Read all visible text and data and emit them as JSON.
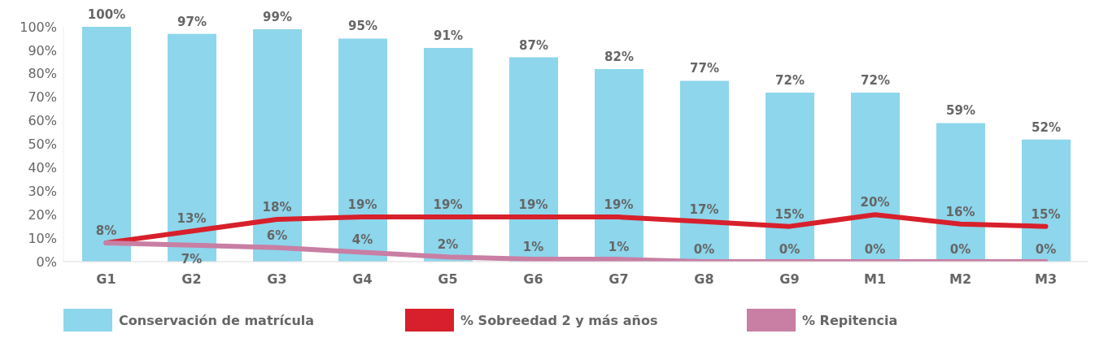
{
  "chart_data": {
    "type": "bar",
    "categories": [
      "G1",
      "G2",
      "G3",
      "G4",
      "G5",
      "G6",
      "G7",
      "G8",
      "G9",
      "M1",
      "M2",
      "M3"
    ],
    "series": [
      {
        "name": "Conservación de matrícula",
        "color": "#8dd6ec",
        "values": [
          100,
          97,
          99,
          95,
          91,
          87,
          82,
          77,
          72,
          72,
          59,
          52
        ],
        "value_labels": [
          "100%",
          "97%",
          "99%",
          "95%",
          "91%",
          "87%",
          "82%",
          "77%",
          "72%",
          "72%",
          "59%",
          "52%"
        ]
      },
      {
        "name": "% Sobreedad 2 y más años",
        "type": "line",
        "color": "#d7202b",
        "values": [
          8,
          13,
          18,
          19,
          19,
          19,
          19,
          17,
          15,
          20,
          16,
          15
        ],
        "value_labels": [
          "8%",
          "13%",
          "18%",
          "19%",
          "19%",
          "19%",
          "19%",
          "17%",
          "15%",
          "20%",
          "16%",
          "15%"
        ]
      },
      {
        "name": "% Repitencia",
        "type": "line",
        "color": "#c97ea3",
        "values": [
          8,
          7,
          6,
          4,
          2,
          1,
          1,
          0,
          0,
          0,
          0,
          0
        ],
        "value_labels": [
          null,
          "7%",
          "6%",
          "4%",
          "2%",
          "1%",
          "1%",
          "0%",
          "0%",
          "0%",
          "0%",
          "0%"
        ]
      }
    ],
    "ylim": [
      0,
      100
    ],
    "yticks": [
      {
        "value": 0,
        "label": "0%"
      },
      {
        "value": 10,
        "label": "10%"
      },
      {
        "value": 20,
        "label": "20%"
      },
      {
        "value": 30,
        "label": "30%"
      },
      {
        "value": 40,
        "label": "40%"
      },
      {
        "value": 50,
        "label": "50%"
      },
      {
        "value": 60,
        "label": "60%"
      },
      {
        "value": 70,
        "label": "70%"
      },
      {
        "value": 80,
        "label": "80%"
      },
      {
        "value": 90,
        "label": "90%"
      },
      {
        "value": 100,
        "label": "100%"
      }
    ],
    "grid": false,
    "legend": "bottom",
    "marker": "none",
    "line_style": "solid"
  }
}
